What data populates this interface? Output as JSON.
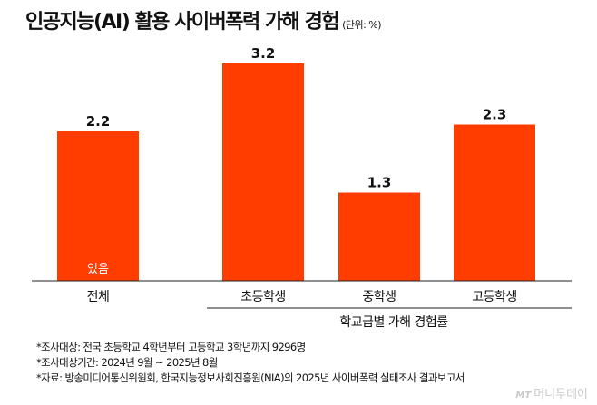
{
  "header": {
    "title": "인공지능(AI) 활용 사이버폭력 가해 경험",
    "unit": "(단위: %)"
  },
  "chart_data": {
    "type": "bar",
    "title": "인공지능(AI) 활용 사이버폭력 가해 경험",
    "unit": "%",
    "categories": [
      "전체",
      "초등학생",
      "중학생",
      "고등학생"
    ],
    "values": [
      2.2,
      3.2,
      1.3,
      2.3
    ],
    "value_labels": [
      "2.2",
      "3.2",
      "1.3",
      "2.3"
    ],
    "bar_inner_label": "있음",
    "group_label": "학교급별 가해 경험률",
    "bar_color": "#ff3d00",
    "ylim": [
      0,
      3.6
    ],
    "grid": false,
    "legend": "none"
  },
  "notes": [
    "*조사대상: 전국 초등학교 4학년부터 고등학교 3학년까지 9296명",
    "*조사대상기간: 2024년 9월 ~ 2025년 8월",
    "*자료: 방송미디어통신위원회, 한국지능정보사회진흥원(NIA)의 2025년 사이버폭력 실태조사 결과보고서"
  ],
  "watermark": {
    "mark": "MT",
    "text": "머니투데이"
  }
}
